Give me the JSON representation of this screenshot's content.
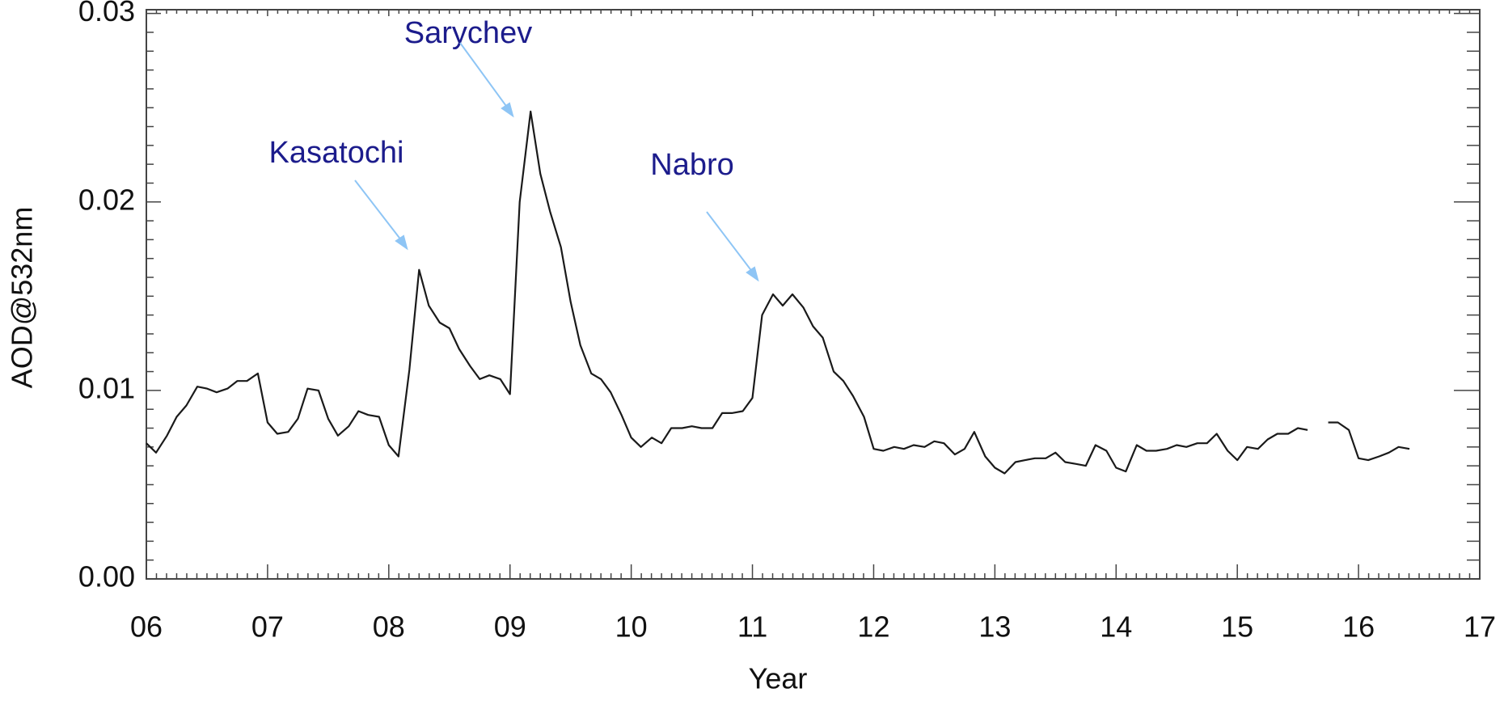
{
  "chart_data": {
    "type": "line",
    "x_label": "Year",
    "y_label": "AOD@532nm",
    "x": [
      6.0,
      6.08,
      6.17,
      6.25,
      6.33,
      6.42,
      6.5,
      6.58,
      6.67,
      6.75,
      6.83,
      6.92,
      7.0,
      7.08,
      7.17,
      7.25,
      7.33,
      7.42,
      7.5,
      7.58,
      7.67,
      7.75,
      7.83,
      7.92,
      8.0,
      8.08,
      8.17,
      8.25,
      8.33,
      8.42,
      8.5,
      8.58,
      8.67,
      8.75,
      8.83,
      8.92,
      9.0,
      9.08,
      9.17,
      9.25,
      9.33,
      9.42,
      9.5,
      9.58,
      9.67,
      9.75,
      9.83,
      9.92,
      10.0,
      10.08,
      10.17,
      10.25,
      10.33,
      10.42,
      10.5,
      10.58,
      10.67,
      10.75,
      10.83,
      10.92,
      11.0,
      11.08,
      11.17,
      11.25,
      11.33,
      11.42,
      11.5,
      11.58,
      11.67,
      11.75,
      11.83,
      11.92,
      12.0,
      12.08,
      12.17,
      12.25,
      12.33,
      12.42,
      12.5,
      12.58,
      12.67,
      12.75,
      12.83,
      12.92,
      13.0,
      13.08,
      13.17,
      13.25,
      13.33,
      13.42,
      13.5,
      13.58,
      13.67,
      13.75,
      13.83,
      13.92,
      14.0,
      14.08,
      14.17,
      14.25,
      14.33,
      14.42,
      14.5,
      14.58,
      14.67,
      14.75,
      14.83,
      14.92,
      15.0,
      15.08,
      15.17,
      15.25,
      15.33,
      15.42,
      15.5,
      15.58,
      15.67,
      15.75,
      15.83,
      15.92,
      16.0,
      16.08,
      16.17,
      16.25,
      16.33,
      16.42
    ],
    "values": [
      0.0072,
      0.0067,
      0.0076,
      0.0086,
      0.0092,
      0.0102,
      0.0101,
      0.0099,
      0.0101,
      0.0105,
      0.0105,
      0.0109,
      0.0083,
      0.0077,
      0.0078,
      0.0085,
      0.0101,
      0.01,
      0.0085,
      0.0076,
      0.0081,
      0.0089,
      0.0087,
      0.0086,
      0.0071,
      0.0065,
      0.0111,
      0.0164,
      0.0145,
      0.0136,
      0.0133,
      0.0122,
      0.0113,
      0.0106,
      0.0108,
      0.0106,
      0.0098,
      0.02,
      0.0248,
      0.0215,
      0.0195,
      0.0176,
      0.0147,
      0.0124,
      0.0109,
      0.0106,
      0.0099,
      0.0087,
      0.0075,
      0.007,
      0.0075,
      0.0072,
      0.008,
      0.008,
      0.0081,
      0.008,
      0.008,
      0.0088,
      0.0088,
      0.0089,
      0.0096,
      0.014,
      0.0151,
      0.0145,
      0.0151,
      0.0144,
      0.0134,
      0.0128,
      0.011,
      0.0105,
      0.0097,
      0.0086,
      0.0069,
      0.0068,
      0.007,
      0.0069,
      0.0071,
      0.007,
      0.0073,
      0.0072,
      0.0066,
      0.0069,
      0.0078,
      0.0065,
      0.0059,
      0.0056,
      0.0062,
      0.0063,
      0.0064,
      0.0064,
      0.0067,
      0.0062,
      0.0061,
      0.006,
      0.0071,
      0.0068,
      0.0059,
      0.0057,
      0.0071,
      0.0068,
      0.0068,
      0.0069,
      0.0071,
      0.007,
      0.0072,
      0.0072,
      0.0077,
      0.0068,
      0.0063,
      0.007,
      0.0069,
      0.0074,
      0.0077,
      0.0077,
      0.008,
      0.0079,
      null,
      0.0083,
      0.0083,
      0.0079,
      0.0064,
      0.0063,
      0.0065,
      0.0067,
      0.007,
      0.0069
    ],
    "color": "#1a1a1a",
    "xlim": [
      6,
      17
    ],
    "xticks": [
      {
        "value": 6,
        "label": "06"
      },
      {
        "value": 7,
        "label": "07"
      },
      {
        "value": 8,
        "label": "08"
      },
      {
        "value": 9,
        "label": "09"
      },
      10,
      11,
      12,
      13,
      14,
      15,
      16,
      17
    ],
    "ylim": [
      0,
      0.0302
    ],
    "yticks": [
      {
        "value": 0,
        "label": "0.00"
      },
      0.01,
      0.02,
      0.03
    ],
    "annotations": [
      "Kasatochi",
      "Sarychev",
      "Nabro"
    ]
  }
}
